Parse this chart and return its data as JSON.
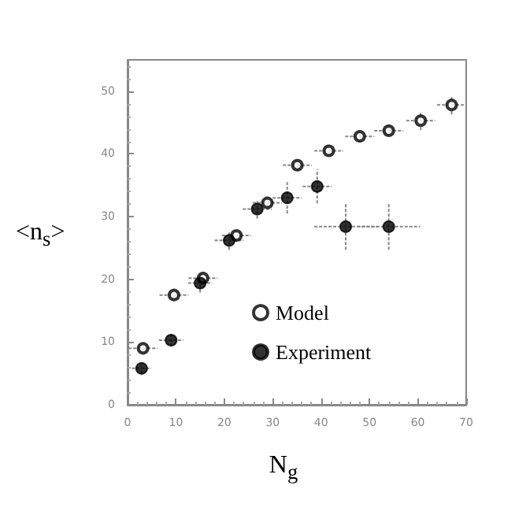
{
  "chart_data": {
    "type": "scatter",
    "xlabel": "N$_{g}$",
    "ylabel": "<n$_{s}$>",
    "xlim": [
      0,
      70
    ],
    "xticks": [
      0,
      10,
      20,
      30,
      40,
      50,
      60,
      70
    ],
    "ylim": [
      0,
      55
    ],
    "yticks": [
      0,
      10,
      20,
      30,
      40,
      50
    ],
    "grid": false,
    "legend": "bottom",
    "marker": "circle",
    "series": [
      {
        "name": "Model",
        "color": "#000000",
        "x": [
          3.2,
          9.6,
          15.6,
          22.5,
          28.9,
          35.1,
          41.6,
          48,
          54,
          60.6,
          67
        ],
        "values": [
          9,
          17.5,
          20.2,
          27,
          32.2,
          38.2,
          40.5,
          42.8,
          43.7,
          45.3,
          47.8
        ],
        "xerrors": [
          3,
          3,
          3,
          3,
          3,
          3,
          3,
          3,
          3,
          3,
          3
        ],
        "errors": [
          0.5,
          0.5,
          0.5,
          0.5,
          0.6,
          0.7,
          0.7,
          0.8,
          0.8,
          1.5,
          1.5
        ]
      },
      {
        "name": "Experiment",
        "color": "#000000",
        "x": [
          2.9,
          9,
          15,
          21,
          26.8,
          33,
          39.2,
          45.1,
          54
        ],
        "values": [
          5.8,
          10.3,
          19.4,
          26.2,
          31.2,
          33,
          34.8,
          28.4,
          28.4
        ],
        "xerrors": [
          2,
          2.5,
          2.5,
          3,
          3,
          3,
          3,
          6.5,
          6.5
        ],
        "errors": [
          0.8,
          1,
          1.5,
          1.5,
          1.5,
          2.5,
          2.7,
          3.7,
          3.7
        ]
      }
    ]
  }
}
